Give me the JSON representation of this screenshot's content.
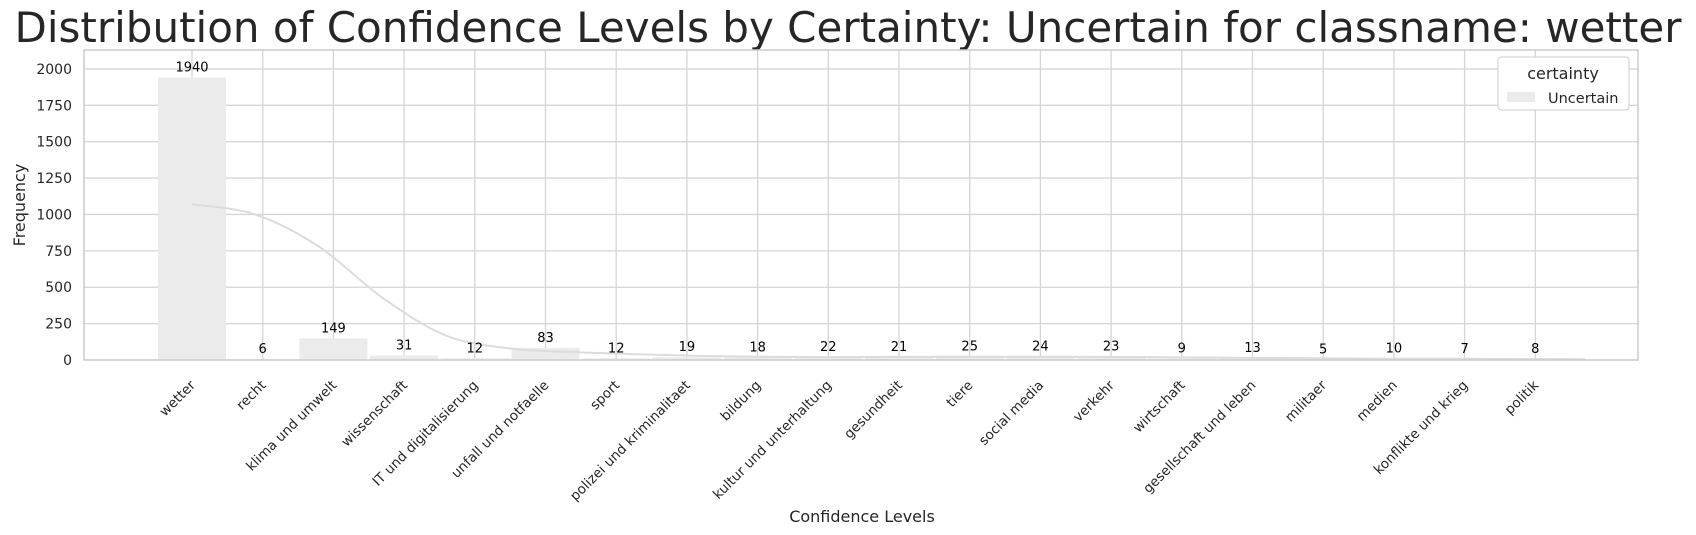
{
  "chart_data": {
    "type": "bar",
    "title": "Distribution of Confidence Levels by Certainty: Uncertain for classname: wetter",
    "xlabel": "Confidence Levels",
    "ylabel": "Frequency",
    "categories": [
      "wetter",
      "recht",
      "klima und umwelt",
      "wissenschaft",
      "IT und digitalisierung",
      "unfall und notfaelle",
      "sport",
      "polizei und kriminalitaet",
      "bildung",
      "kultur und unterhaltung",
      "gesundheit",
      "tiere",
      "social media",
      "verkehr",
      "wirtschaft",
      "gesellschaft und leben",
      "militaer",
      "medien",
      "konflikte und krieg",
      "politik"
    ],
    "series": [
      {
        "name": "Uncertain",
        "values": [
          1940,
          6,
          149,
          31,
          12,
          83,
          12,
          19,
          18,
          22,
          21,
          25,
          24,
          23,
          9,
          13,
          5,
          10,
          7,
          8
        ]
      }
    ],
    "yticks": [
      "0",
      "250",
      "500",
      "750",
      "1000",
      "1250",
      "1500",
      "1750",
      "2000"
    ],
    "ylim": [
      0,
      2130
    ],
    "kde_curve": [
      1070,
      1000,
      780,
      430,
      170,
      80,
      55,
      40,
      28,
      22,
      20,
      21,
      22,
      23,
      22,
      20,
      17,
      14,
      11,
      9,
      8,
      7,
      5
    ],
    "legend": {
      "title": "certainty",
      "position": "top-right"
    },
    "grid": true,
    "colors": {
      "bar": "#ebebeb",
      "kde": "#dcdcdc",
      "grid": "#d5d5d5",
      "spine": "#cccccc"
    }
  }
}
